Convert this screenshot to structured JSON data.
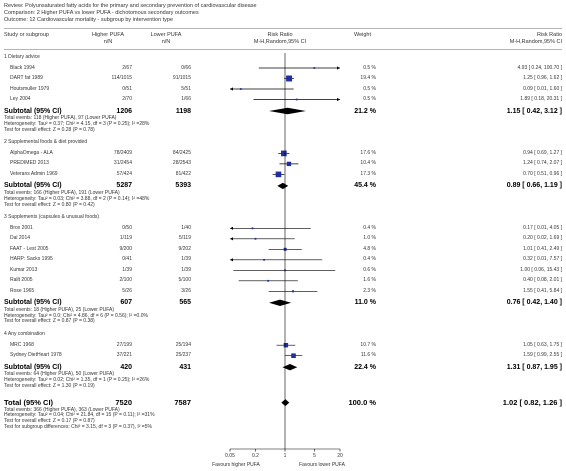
{
  "header": {
    "review_line": "Review:   Polyunsaturated fatty acids for the primary and secondary prevention of cardiovascular disease",
    "comparison_line": "Comparison:   2 Higher PUFA vs lower PUFA - dichotomous secondary outcomes",
    "outcome_line": "Outcome:   12 Cardiovascular mortality - subgroup by intervention type"
  },
  "columns": {
    "study": "Study or subgroup",
    "higher_line1": "Higher PUFA",
    "higher_line2": "n/N",
    "lower_line1": "Lower PUFA",
    "lower_line2": "n/N",
    "rr_line1": "Risk Ratio",
    "rr_line2": "M-H,Random,95% CI",
    "weight": "Weight",
    "rr2_line1": "Risk Ratio",
    "rr2_line2": "M-H,Random,95% CI"
  },
  "scale": {
    "ticks": [
      "0.05",
      "0.2",
      "1",
      "5",
      "20"
    ],
    "left_label": "Favours higher PUFA",
    "right_label": "Favours lower PUFA"
  },
  "chart_data": {
    "type": "forest",
    "scale": "log",
    "xlim": [
      0.05,
      20
    ],
    "groups": [
      {
        "title": "1 Dietary advice",
        "studies": [
          {
            "name": "Black 1994",
            "higher": "2/67",
            "lower": "0/66",
            "weight": "0.5 %",
            "ci_text": "4.93 [ 0.24, 100.70 ]",
            "rr": 4.93,
            "lo": 0.24,
            "hi": 100.7,
            "w": 0.5
          },
          {
            "name": "DART fat 1989",
            "higher": "114/1015",
            "lower": "91/1015",
            "weight": "19.4 %",
            "ci_text": "1.25 [ 0.96, 1.62 ]",
            "rr": 1.25,
            "lo": 0.96,
            "hi": 1.62,
            "w": 19.4
          },
          {
            "name": "Houtsmuller 1979",
            "higher": "0/51",
            "lower": "5/51",
            "weight": "0.5 %",
            "ci_text": "0.09 [ 0.01, 1.60 ]",
            "rr": 0.09,
            "lo": 0.01,
            "hi": 1.6,
            "w": 0.5
          },
          {
            "name": "Ley 2004",
            "higher": "2/70",
            "lower": "1/66",
            "weight": "0.5 %",
            "ci_text": "1.89 [ 0.18, 20.31 ]",
            "rr": 1.89,
            "lo": 0.18,
            "hi": 20.31,
            "w": 0.5
          }
        ],
        "subtotal": {
          "label": "Subtotal (95% CI)",
          "higher_n": "1206",
          "lower_n": "1198",
          "weight": "21.2 %",
          "ci_text": "1.15 [ 0.42, 3.12 ]",
          "rr": 1.15,
          "lo": 0.42,
          "hi": 3.12
        },
        "notes": [
          "Total events: 118 (Higher PUFA), 97 (Lower PUFA)",
          "Heterogeneity: Tau² = 0.37; Chi² = 4.15, df = 3 (P = 0.25); I² =28%",
          "Test for overall effect: Z = 0.28 (P = 0.78)"
        ]
      },
      {
        "title": "2 Supplemental foods & diet provided",
        "studies": [
          {
            "name": "AlphaOmega - ALA",
            "higher": "78/2409",
            "lower": "84/2425",
            "weight": "17.6 %",
            "ci_text": "0.94 [ 0.69, 1.27 ]",
            "rr": 0.94,
            "lo": 0.69,
            "hi": 1.27,
            "w": 17.6
          },
          {
            "name": "PREDIMED 2013",
            "higher": "31/2454",
            "lower": "28/2543",
            "weight": "10.4 %",
            "ci_text": "1.24 [ 0.74, 2.07 ]",
            "rr": 1.24,
            "lo": 0.74,
            "hi": 2.07,
            "w": 10.4
          },
          {
            "name": "Veterans Admin 1969",
            "higher": "57/424",
            "lower": "81/422",
            "weight": "17.3 %",
            "ci_text": "0.70 [ 0.51, 0.96 ]",
            "rr": 0.7,
            "lo": 0.51,
            "hi": 0.96,
            "w": 17.3
          }
        ],
        "subtotal": {
          "label": "Subtotal (95% CI)",
          "higher_n": "5287",
          "lower_n": "5393",
          "weight": "45.4 %",
          "ci_text": "0.89 [ 0.66, 1.19 ]",
          "rr": 0.89,
          "lo": 0.66,
          "hi": 1.19
        },
        "notes": [
          "Total events: 166 (Higher PUFA), 191 (Lower PUFA)",
          "Heterogeneity: Tau² = 0.03; Chi² = 3.88, df = 2 (P = 0.14); I² =48%",
          "Test for overall effect: Z = 0.80 (P = 0.42)"
        ]
      },
      {
        "title": "3 Supplements (capsules & unusual foods)",
        "studies": [
          {
            "name": "Brox 2001",
            "higher": "0/50",
            "lower": "1/40",
            "weight": "0.4 %",
            "ci_text": "0.17 [ 0.01, 4.05 ]",
            "rr": 0.17,
            "lo": 0.01,
            "hi": 4.05,
            "w": 0.4
          },
          {
            "name": "Dal 2014",
            "higher": "1/119",
            "lower": "5/119",
            "weight": "1.0 %",
            "ci_text": "0.20 [ 0.02, 1.69 ]",
            "rr": 0.2,
            "lo": 0.02,
            "hi": 1.69,
            "w": 1.0
          },
          {
            "name": "FAAT - Lest 2005",
            "higher": "9/200",
            "lower": "9/202",
            "weight": "4.8 %",
            "ci_text": "1.01 [ 0.41, 2.49 ]",
            "rr": 1.01,
            "lo": 0.41,
            "hi": 2.49,
            "w": 4.8
          },
          {
            "name": "HARP: Sacks 1995",
            "higher": "0/41",
            "lower": "1/39",
            "weight": "0.4 %",
            "ci_text": "0.32 [ 0.01, 7.57 ]",
            "rr": 0.32,
            "lo": 0.01,
            "hi": 7.57,
            "w": 0.4
          },
          {
            "name": "Kumar 2013",
            "higher": "1/39",
            "lower": "1/39",
            "weight": "0.6 %",
            "ci_text": "1.00 [ 0.06, 15.43 ]",
            "rr": 1.0,
            "lo": 0.06,
            "hi": 15.43,
            "w": 0.6
          },
          {
            "name": "Rallt 2005",
            "higher": "2/100",
            "lower": "5/100",
            "weight": "1.6 %",
            "ci_text": "0.40 [ 0.08, 2.01 ]",
            "rr": 0.4,
            "lo": 0.08,
            "hi": 2.01,
            "w": 1.6
          },
          {
            "name": "Rose 1965",
            "higher": "5/26",
            "lower": "3/26",
            "weight": "2.3 %",
            "ci_text": "1.55 [ 0.41, 5.84 ]",
            "rr": 1.55,
            "lo": 0.41,
            "hi": 5.84,
            "w": 2.3
          }
        ],
        "subtotal": {
          "label": "Subtotal (95% CI)",
          "higher_n": "607",
          "lower_n": "565",
          "weight": "11.0 %",
          "ci_text": "0.76 [ 0.42, 1.40 ]",
          "rr": 0.76,
          "lo": 0.42,
          "hi": 1.4
        },
        "notes": [
          "Total events: 18 (Higher PUFA), 25 (Lower PUFA)",
          "Heterogeneity: Tau² = 0.0; Chi² = 4.86, df = 6 (P = 0.56); I² =0.0%",
          "Test for overall effect: Z = 0.87 (P = 0.38)"
        ]
      },
      {
        "title": "4 Any combination",
        "studies": [
          {
            "name": "MRC 1968",
            "higher": "27/199",
            "lower": "25/194",
            "weight": "10.7 %",
            "ci_text": "1.05 [ 0.63, 1.75 ]",
            "rr": 1.05,
            "lo": 0.63,
            "hi": 1.75,
            "w": 10.7
          },
          {
            "name": "Sydney DietHeart 1978",
            "higher": "37/221",
            "lower": "25/237",
            "weight": "11.6 %",
            "ci_text": "1.59 [ 0.99, 2.55 ]",
            "rr": 1.59,
            "lo": 0.99,
            "hi": 2.55,
            "w": 11.6
          }
        ],
        "subtotal": {
          "label": "Subtotal (95% CI)",
          "higher_n": "420",
          "lower_n": "431",
          "weight": "22.4 %",
          "ci_text": "1.31 [ 0.87, 1.95 ]",
          "rr": 1.31,
          "lo": 0.87,
          "hi": 1.95
        },
        "notes": [
          "Total events: 64 (Higher PUFA), 50 (Lower PUFA)",
          "Heterogeneity: Tau² = 0.02; Chi² = 1.35, df = 1 (P = 0.25); I² =26%",
          "Test for overall effect: Z = 1.30 (P = 0.19)"
        ]
      }
    ],
    "total": {
      "label": "Total (95% CI)",
      "higher_n": "7520",
      "lower_n": "7587",
      "weight": "100.0 %",
      "ci_text": "1.02 [ 0.82, 1.26 ]",
      "rr": 1.02,
      "lo": 0.82,
      "hi": 1.26,
      "notes": [
        "Total events: 366 (Higher PUFA), 363 (Lower PUFA)",
        "Heterogeneity: Tau² = 0.04; Chi² = 21.84, df = 15 (P = 0.11); I² =31%",
        "Test for overall effect: Z = 0.17 (P = 0.87)",
        "Test for subgroup differences: Chi² = 3.15, df = 3 (P = 0.37), I² =5%"
      ]
    }
  }
}
